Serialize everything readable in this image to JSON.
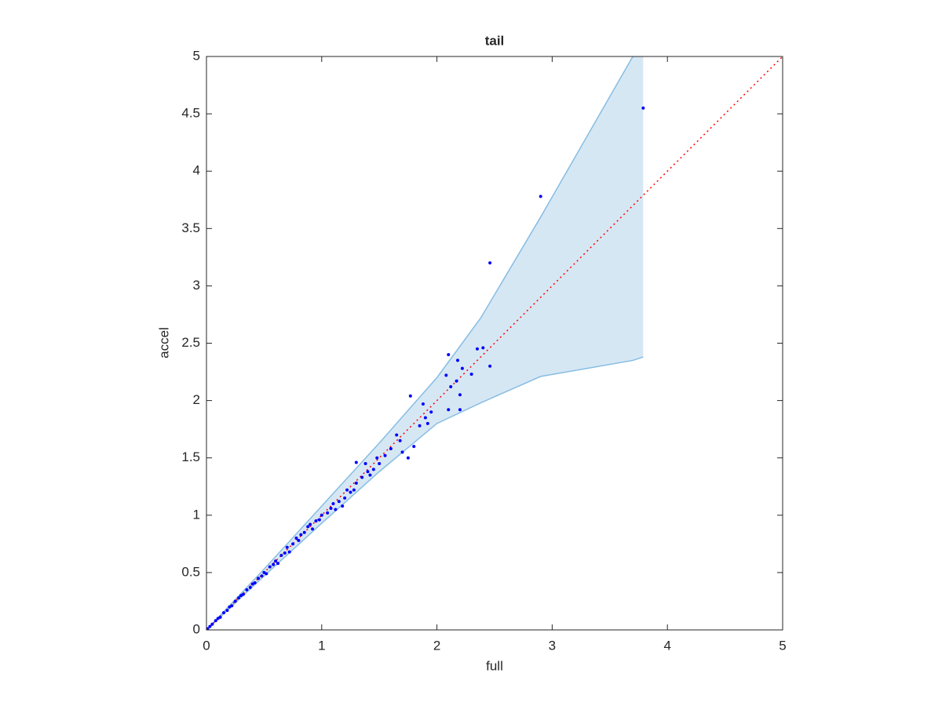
{
  "chart_data": {
    "type": "scatter",
    "title": "tail",
    "xlabel": "full",
    "ylabel": "accel",
    "xlim": [
      0,
      5
    ],
    "ylim": [
      0,
      5
    ],
    "xticks": [
      0,
      1,
      2,
      3,
      4,
      5
    ],
    "yticks": [
      0,
      0.5,
      1,
      1.5,
      2,
      2.5,
      3,
      3.5,
      4,
      4.5,
      5
    ],
    "band": {
      "color": "#d6e7f4",
      "edge_color": "#86bde3",
      "x": [
        0,
        0.5,
        1,
        1.5,
        2,
        2.38,
        2.9,
        3.7,
        3.79
      ],
      "upper": [
        0,
        0.53,
        1.08,
        1.63,
        2.2,
        2.72,
        3.6,
        5.0,
        5.15
      ],
      "lower": [
        0,
        0.47,
        0.93,
        1.38,
        1.8,
        1.98,
        2.21,
        2.35,
        2.38
      ]
    },
    "reference": {
      "color": "#ff0000",
      "x": [
        0,
        5
      ],
      "y": [
        0,
        5
      ]
    },
    "series": [
      {
        "color": "#0000ff",
        "x": [
          3.79,
          2.9,
          2.46,
          2.1,
          2.18,
          2.35,
          2.4,
          2.46,
          2.22,
          2.3,
          2.08,
          2.17,
          2.12,
          2.2,
          2.1,
          2.2,
          1.77,
          1.88,
          1.95,
          1.9,
          1.92,
          1.85,
          1.75,
          1.8,
          1.65,
          1.68,
          1.7,
          1.3,
          1.6,
          1.55,
          1.5,
          1.45,
          1.4,
          1.35,
          1.48,
          1.42,
          1.25,
          1.3,
          1.2,
          1.15,
          1.1,
          1.18,
          1.22,
          1.12,
          1.05,
          1,
          0.95,
          0.9,
          0.92,
          0.85,
          0.8,
          0.82,
          0.75,
          0.7,
          0.72,
          0.65,
          0.6,
          0.62,
          0.55,
          0.5,
          0.52,
          0.45,
          0.4,
          0.42,
          0.35,
          0.3,
          0.32,
          0.25,
          0.2,
          0.22,
          0.15,
          0.1,
          0.12,
          0.05,
          0.03,
          0.01,
          0.08,
          0.18,
          0.28,
          0.38,
          0.48,
          0.58,
          0.68,
          0.78,
          0.88,
          0.98,
          1.08,
          1.28,
          1.38
        ],
        "y": [
          4.55,
          3.78,
          3.2,
          2.4,
          2.35,
          2.45,
          2.46,
          2.3,
          2.28,
          2.23,
          2.22,
          2.17,
          2.12,
          2.05,
          1.92,
          1.92,
          2.04,
          1.97,
          1.9,
          1.85,
          1.8,
          1.78,
          1.5,
          1.6,
          1.7,
          1.65,
          1.55,
          1.46,
          1.58,
          1.52,
          1.45,
          1.4,
          1.38,
          1.33,
          1.5,
          1.35,
          1.2,
          1.28,
          1.15,
          1.12,
          1.1,
          1.08,
          1.22,
          1.05,
          1.02,
          1.0,
          0.95,
          0.92,
          0.88,
          0.85,
          0.78,
          0.83,
          0.75,
          0.72,
          0.68,
          0.65,
          0.6,
          0.58,
          0.55,
          0.5,
          0.49,
          0.45,
          0.4,
          0.41,
          0.35,
          0.3,
          0.31,
          0.25,
          0.2,
          0.21,
          0.15,
          0.1,
          0.11,
          0.05,
          0.03,
          0.01,
          0.08,
          0.17,
          0.28,
          0.37,
          0.47,
          0.57,
          0.67,
          0.8,
          0.9,
          0.96,
          1.06,
          1.22,
          1.45
        ]
      }
    ]
  }
}
